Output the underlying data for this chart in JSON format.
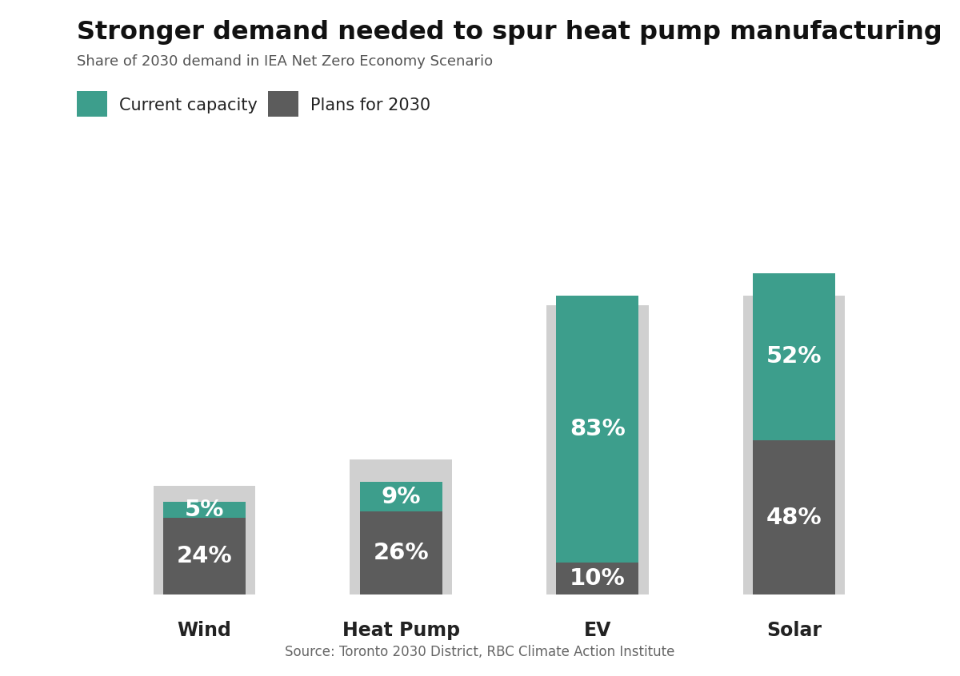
{
  "title": "Stronger demand needed to spur heat pump manufacturing",
  "subtitle": "Share of 2030 demand in IEA Net Zero Economy Scenario",
  "source": "Source: Toronto 2030 District, RBC Climate Action Institute",
  "categories": [
    "Wind",
    "Heat Pump",
    "EV",
    "Solar"
  ],
  "plans_values": [
    24,
    26,
    10,
    48
  ],
  "capacity_values": [
    5,
    9,
    83,
    52
  ],
  "background_values": [
    34,
    42,
    90,
    93
  ],
  "color_plans": "#5c5c5c",
  "color_capacity": "#3d9e8c",
  "color_background": "#d0d0d0",
  "bar_width": 0.42,
  "bg_bar_width": 0.52,
  "label_fontsize": 21,
  "title_fontsize": 23,
  "subtitle_fontsize": 13,
  "source_fontsize": 12,
  "xlabel_fontsize": 17,
  "legend_fontsize": 15,
  "figsize": [
    12.0,
    8.46
  ],
  "dpi": 100,
  "background_color": "#ffffff",
  "ylim": [
    0,
    105
  ]
}
